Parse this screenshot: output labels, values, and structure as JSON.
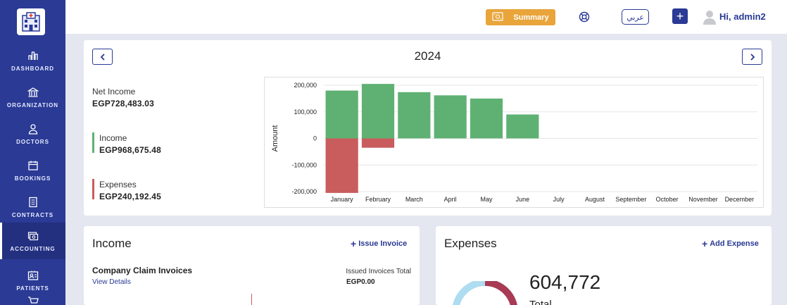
{
  "sidebar": {
    "items": [
      {
        "label": "DASHBOARD",
        "icon": "bar-chart-icon"
      },
      {
        "label": "ORGANIZATION",
        "icon": "bank-icon"
      },
      {
        "label": "DOCTORS",
        "icon": "person-icon"
      },
      {
        "label": "BOOKINGS",
        "icon": "calendar-icon"
      },
      {
        "label": "CONTRACTS",
        "icon": "document-icon"
      },
      {
        "label": "ACCOUNTING",
        "icon": "money-icon",
        "active": true
      },
      {
        "label": "PATIENTS",
        "icon": "id-card-icon"
      }
    ]
  },
  "topbar": {
    "summary_label": "Summary",
    "lang_label": "عربي",
    "add_label": "+",
    "greeting": "Hi, admin2"
  },
  "colors": {
    "brand": "#2a3a95",
    "accent": "#e9a43a",
    "income": "#5fb173",
    "expense": "#c95c5c"
  },
  "overview": {
    "year": "2024",
    "net_income_label": "Net Income",
    "net_income_value": "EGP728,483.03",
    "income_label": "Income",
    "income_value": "EGP968,675.48",
    "expenses_label": "Expenses",
    "expenses_value": "EGP240,192.45"
  },
  "chart_data": {
    "type": "bar",
    "stacked": true,
    "categories": [
      "January",
      "February",
      "March",
      "April",
      "May",
      "June",
      "July",
      "August",
      "September",
      "October",
      "November",
      "December"
    ],
    "series": [
      {
        "values": [
          180000,
          205000,
          174000,
          162000,
          150000,
          90000,
          0,
          0,
          0,
          0,
          0,
          0
        ],
        "color": "#5fb173"
      },
      {
        "values": [
          -205000,
          -35000,
          0,
          0,
          0,
          0,
          0,
          0,
          0,
          0,
          0,
          0
        ],
        "color": "#c95c5c"
      }
    ],
    "ylabel": "Amount",
    "ylim": [
      -200000,
      200000
    ],
    "yticks": [
      "200,000",
      "100,000",
      "0",
      "-100,000",
      "-200,000"
    ],
    "ytick_values": [
      200000,
      100000,
      0,
      -100000,
      -200000
    ],
    "grid": true
  },
  "income": {
    "title": "Income",
    "action": "Issue Invoice",
    "section_title": "Company Claim Invoices",
    "view_details": "View Details",
    "issued_label": "Issued Invoices Total",
    "issued_value": "EGP0.00"
  },
  "expenses": {
    "title": "Expenses",
    "action": "Add Expense",
    "total_value": "604,772",
    "total_label": "Total"
  }
}
